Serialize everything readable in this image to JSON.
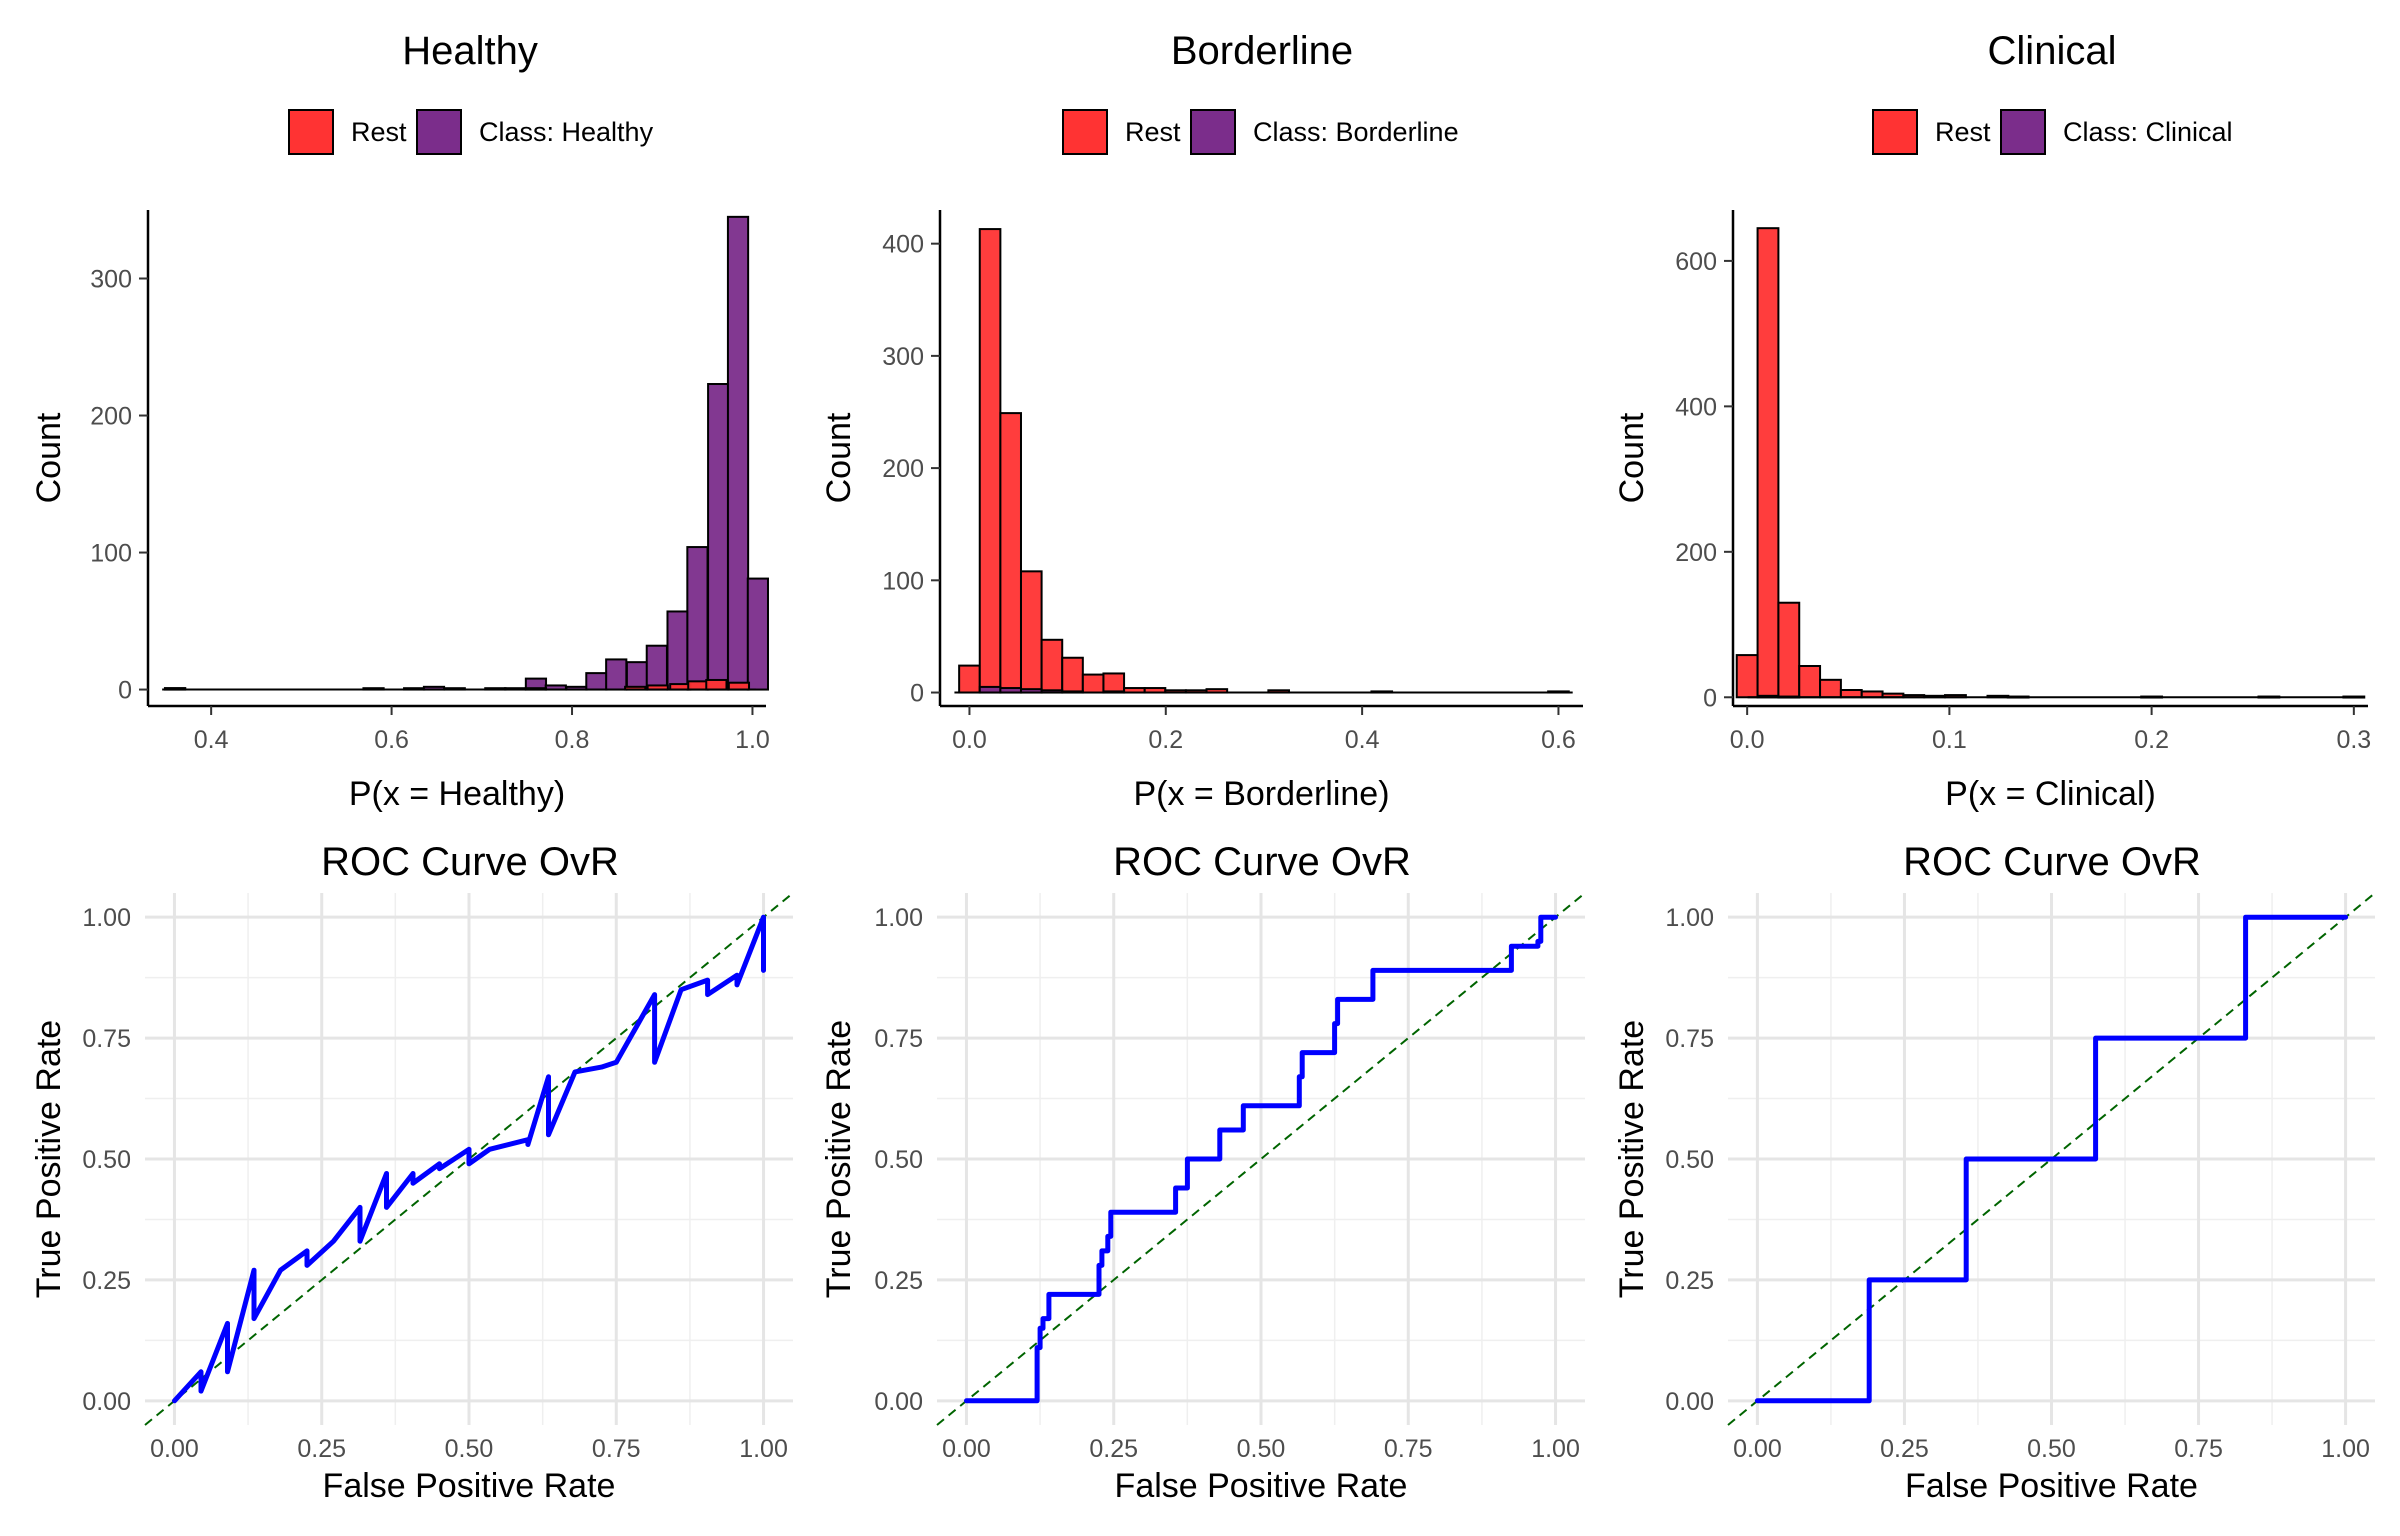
{
  "colors": {
    "rest": "#FF3333",
    "class": "#7B2D8B",
    "roc_line": "#0000FF",
    "diagonal": "#006400",
    "grid": "#E5E5E5",
    "axis": "#000000",
    "tick_text": "#4D4D4D"
  },
  "chart_data": [
    {
      "type": "bar",
      "subtype": "histogram",
      "title": "Healthy",
      "xlabel": "P(x = Healthy)",
      "ylabel": "Count",
      "xlim": [
        0.33,
        1.015
      ],
      "ylim": [
        -12,
        350
      ],
      "xticks": [
        "0.4",
        "0.6",
        "0.8",
        "1.0"
      ],
      "xtick_values": [
        0.4,
        0.6,
        0.8,
        1.0
      ],
      "yticks": [
        "0",
        "100",
        "200",
        "300"
      ],
      "ytick_values": [
        0,
        100,
        200,
        300
      ],
      "bin_width": 0.0224,
      "legend": {
        "position": "top",
        "entries": [
          "Rest",
          "Class: Healthy"
        ]
      },
      "grid": false,
      "series": [
        {
          "name": "Rest",
          "bins": [
            [
              0.36,
              1
            ],
            [
              0.76,
              1
            ],
            [
              0.87,
              2
            ],
            [
              0.895,
              3
            ],
            [
              0.92,
              4
            ],
            [
              0.94,
              6
            ],
            [
              0.96,
              7
            ],
            [
              0.985,
              5
            ]
          ]
        },
        {
          "name": "Class: Healthy",
          "bins": [
            [
              0.36,
              1
            ],
            [
              0.38,
              0
            ],
            [
              0.58,
              1
            ],
            [
              0.625,
              1
            ],
            [
              0.647,
              2
            ],
            [
              0.67,
              1
            ],
            [
              0.715,
              1
            ],
            [
              0.737,
              1
            ],
            [
              0.76,
              8
            ],
            [
              0.782,
              3
            ],
            [
              0.805,
              2
            ],
            [
              0.827,
              12
            ],
            [
              0.849,
              22
            ],
            [
              0.872,
              20
            ],
            [
              0.894,
              32
            ],
            [
              0.917,
              57
            ],
            [
              0.939,
              104
            ],
            [
              0.962,
              223
            ],
            [
              0.984,
              345
            ],
            [
              1.006,
              81
            ]
          ]
        }
      ]
    },
    {
      "type": "bar",
      "subtype": "histogram",
      "title": "Borderline",
      "xlabel": "P(x = Borderline)",
      "ylabel": "Count",
      "xlim": [
        -0.03,
        0.625
      ],
      "ylim": [
        -12,
        430
      ],
      "xticks": [
        "0.0",
        "0.2",
        "0.4",
        "0.6"
      ],
      "xtick_values": [
        0.0,
        0.2,
        0.4,
        0.6
      ],
      "yticks": [
        "0",
        "100",
        "200",
        "300",
        "400"
      ],
      "ytick_values": [
        0,
        100,
        200,
        300,
        400
      ],
      "bin_width": 0.021,
      "legend": {
        "position": "top",
        "entries": [
          "Rest",
          "Class: Borderline"
        ]
      },
      "grid": false,
      "series": [
        {
          "name": "Rest",
          "bins": [
            [
              0.0,
              24
            ],
            [
              0.021,
              413
            ],
            [
              0.042,
              249
            ],
            [
              0.063,
              108
            ],
            [
              0.084,
              47
            ],
            [
              0.105,
              31
            ],
            [
              0.126,
              16
            ],
            [
              0.147,
              17
            ],
            [
              0.168,
              4
            ],
            [
              0.189,
              4
            ],
            [
              0.21,
              2
            ],
            [
              0.231,
              2
            ],
            [
              0.252,
              3
            ],
            [
              0.315,
              2
            ],
            [
              0.42,
              1
            ],
            [
              0.6,
              1
            ]
          ]
        },
        {
          "name": "Class: Borderline",
          "bins": [
            [
              0.021,
              5
            ],
            [
              0.042,
              4
            ],
            [
              0.063,
              3
            ],
            [
              0.084,
              2
            ],
            [
              0.105,
              1
            ],
            [
              0.147,
              1
            ]
          ]
        }
      ]
    },
    {
      "type": "bar",
      "subtype": "histogram",
      "title": "Clinical",
      "xlabel": "P(x = Clinical)",
      "ylabel": "Count",
      "xlim": [
        -0.007,
        0.307
      ],
      "ylim": [
        -12,
        670
      ],
      "xticks": [
        "0.0",
        "0.1",
        "0.2",
        "0.3"
      ],
      "xtick_values": [
        0.0,
        0.1,
        0.2,
        0.3
      ],
      "yticks": [
        "0",
        "200",
        "400",
        "600"
      ],
      "ytick_values": [
        0,
        200,
        400,
        600
      ],
      "bin_width": 0.0103,
      "legend": {
        "position": "top",
        "entries": [
          "Rest",
          "Class: Clinical"
        ]
      },
      "grid": false,
      "series": [
        {
          "name": "Rest",
          "bins": [
            [
              0.0,
              58
            ],
            [
              0.0103,
              645
            ],
            [
              0.0206,
              130
            ],
            [
              0.0309,
              43
            ],
            [
              0.0412,
              24
            ],
            [
              0.0515,
              10
            ],
            [
              0.0618,
              8
            ],
            [
              0.0721,
              5
            ],
            [
              0.0824,
              3
            ],
            [
              0.0927,
              2
            ],
            [
              0.103,
              3
            ],
            [
              0.124,
              2
            ],
            [
              0.134,
              1
            ],
            [
              0.2,
              1
            ],
            [
              0.258,
              1
            ],
            [
              0.3,
              1
            ]
          ]
        },
        {
          "name": "Class: Clinical",
          "bins": [
            [
              0.0103,
              2
            ],
            [
              0.0206,
              1
            ]
          ]
        }
      ]
    },
    {
      "type": "line",
      "title": "ROC Curve OvR",
      "xlabel": "False Positive Rate",
      "ylabel": "True Positive Rate",
      "xlim": [
        -0.05,
        1.05
      ],
      "ylim": [
        -0.05,
        1.05
      ],
      "xticks": [
        "0.00",
        "0.25",
        "0.50",
        "0.75",
        "1.00"
      ],
      "yticks": [
        "0.00",
        "0.25",
        "0.50",
        "0.75",
        "1.00"
      ],
      "tick_values": [
        0,
        0.25,
        0.5,
        0.75,
        1.0
      ],
      "grid": true,
      "reference_line": {
        "x": [
          0,
          1
        ],
        "y": [
          0,
          1
        ],
        "style": "dashed"
      },
      "series": [
        {
          "x": [
            0.0,
            0.045,
            0.045,
            0.09,
            0.09,
            0.135,
            0.135,
            0.18,
            0.225,
            0.225,
            0.27,
            0.315,
            0.315,
            0.36,
            0.36,
            0.405,
            0.405,
            0.45,
            0.45,
            0.5,
            0.5,
            0.535,
            0.6,
            0.6,
            0.635,
            0.635,
            0.68,
            0.725,
            0.75,
            0.815,
            0.815,
            0.86,
            0.905,
            0.905,
            0.955,
            0.955,
            1.0,
            1.0
          ],
          "y": [
            0.0,
            0.06,
            0.02,
            0.16,
            0.06,
            0.27,
            0.17,
            0.27,
            0.31,
            0.28,
            0.33,
            0.4,
            0.33,
            0.47,
            0.4,
            0.47,
            0.45,
            0.49,
            0.48,
            0.52,
            0.49,
            0.52,
            0.54,
            0.53,
            0.67,
            0.55,
            0.68,
            0.69,
            0.7,
            0.84,
            0.7,
            0.85,
            0.87,
            0.84,
            0.88,
            0.86,
            1.0,
            0.89
          ]
        }
      ]
    },
    {
      "type": "line",
      "title": "ROC Curve OvR",
      "xlabel": "False Positive Rate",
      "ylabel": "True Positive Rate",
      "xlim": [
        -0.05,
        1.05
      ],
      "ylim": [
        -0.05,
        1.05
      ],
      "xticks": [
        "0.00",
        "0.25",
        "0.50",
        "0.75",
        "1.00"
      ],
      "yticks": [
        "0.00",
        "0.25",
        "0.50",
        "0.75",
        "1.00"
      ],
      "tick_values": [
        0,
        0.25,
        0.5,
        0.75,
        1.0
      ],
      "grid": true,
      "reference_line": {
        "x": [
          0,
          1
        ],
        "y": [
          0,
          1
        ],
        "style": "dashed"
      },
      "series": [
        {
          "x": [
            0.0,
            0.12,
            0.12,
            0.125,
            0.125,
            0.13,
            0.13,
            0.14,
            0.14,
            0.225,
            0.225,
            0.23,
            0.23,
            0.24,
            0.24,
            0.245,
            0.245,
            0.355,
            0.355,
            0.375,
            0.375,
            0.43,
            0.43,
            0.47,
            0.47,
            0.565,
            0.565,
            0.57,
            0.57,
            0.61,
            0.61,
            0.625,
            0.625,
            0.63,
            0.63,
            0.69,
            0.69,
            0.925,
            0.925,
            0.97,
            0.97,
            0.975,
            0.975,
            1.0
          ],
          "y": [
            0.0,
            0.0,
            0.11,
            0.11,
            0.15,
            0.15,
            0.17,
            0.17,
            0.22,
            0.22,
            0.28,
            0.28,
            0.31,
            0.31,
            0.34,
            0.34,
            0.39,
            0.39,
            0.44,
            0.44,
            0.5,
            0.5,
            0.56,
            0.56,
            0.61,
            0.61,
            0.67,
            0.67,
            0.72,
            0.72,
            0.72,
            0.72,
            0.78,
            0.78,
            0.83,
            0.83,
            0.89,
            0.89,
            0.94,
            0.94,
            0.95,
            0.95,
            1.0,
            1.0
          ]
        }
      ]
    },
    {
      "type": "line",
      "title": "ROC Curve OvR",
      "xlabel": "False Positive Rate",
      "ylabel": "True Positive Rate",
      "xlim": [
        -0.05,
        1.05
      ],
      "ylim": [
        -0.05,
        1.05
      ],
      "xticks": [
        "0.00",
        "0.25",
        "0.50",
        "0.75",
        "1.00"
      ],
      "yticks": [
        "0.00",
        "0.25",
        "0.50",
        "0.75",
        "1.00"
      ],
      "tick_values": [
        0,
        0.25,
        0.5,
        0.75,
        1.0
      ],
      "grid": true,
      "reference_line": {
        "x": [
          0,
          1
        ],
        "y": [
          0,
          1
        ],
        "style": "dashed"
      },
      "series": [
        {
          "x": [
            0.0,
            0.19,
            0.19,
            0.355,
            0.355,
            0.575,
            0.575,
            0.83,
            0.83,
            1.0
          ],
          "y": [
            0.0,
            0.0,
            0.25,
            0.25,
            0.5,
            0.5,
            0.75,
            0.75,
            1.0,
            1.0
          ]
        }
      ]
    }
  ]
}
